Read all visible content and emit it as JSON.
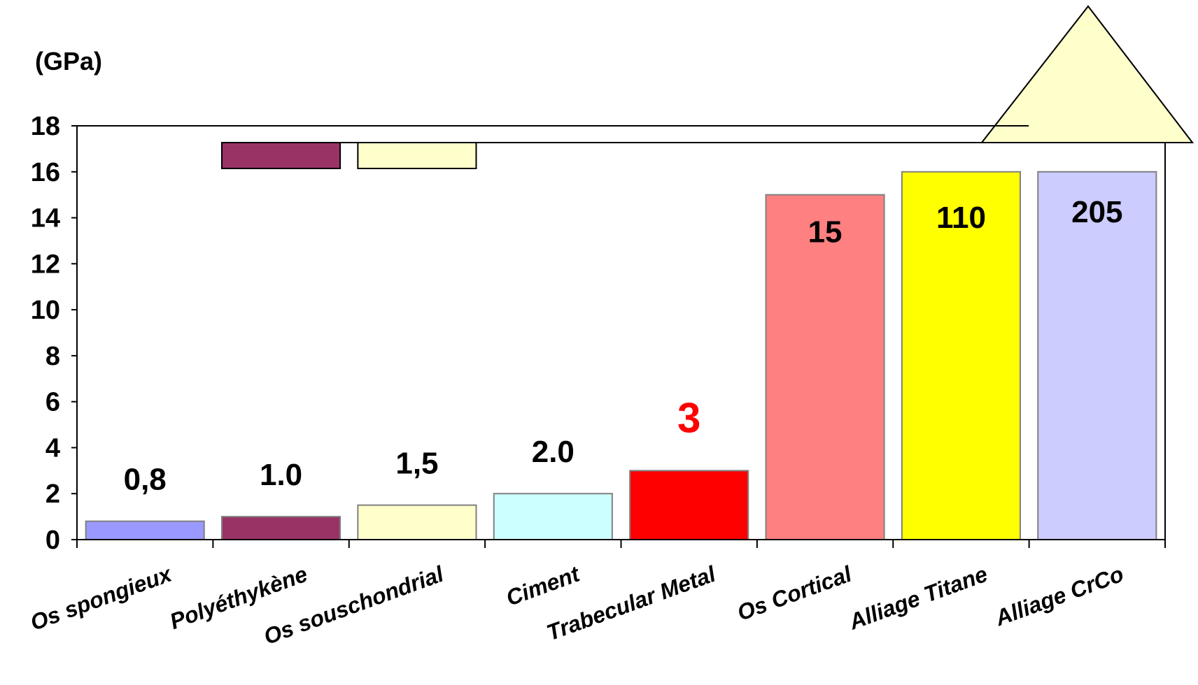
{
  "chart_data": {
    "type": "bar",
    "unit_label": "(GPa)",
    "categories": [
      "Os spongieux",
      "Polyéthykène",
      "Os souschondrial",
      "Ciment",
      "Trabecular Metal",
      "Os Cortical",
      "Alliage  Titane",
      "Alliage  CrCo"
    ],
    "values": [
      0.8,
      1.0,
      1.5,
      2.0,
      3,
      15,
      110,
      205
    ],
    "value_labels": [
      "0,8",
      "1.0",
      "1,5",
      "2.0",
      "3",
      "15",
      "110",
      "205"
    ],
    "colors": [
      "#9999FF",
      "#993366",
      "#FFFFCC",
      "#CCFFFF",
      "#FF0000",
      "#FF8080",
      "#FFFF00",
      "#CCCCFF"
    ],
    "value_label_colors": [
      "#000000",
      "#000000",
      "#000000",
      "#000000",
      "#FF0000",
      "#000000",
      "#000000",
      "#000000"
    ],
    "ylim": [
      0,
      18
    ],
    "yticks": [
      0,
      2,
      4,
      6,
      8,
      10,
      12,
      14,
      16,
      18
    ],
    "axis_break": 16,
    "overflow_arrows": [
      1,
      2
    ],
    "xlabel": "",
    "ylabel": "",
    "title": ""
  }
}
